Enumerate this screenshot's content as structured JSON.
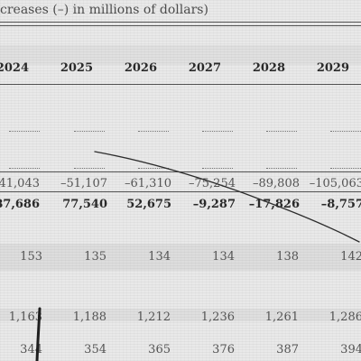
{
  "header": {
    "caption": "creases (–) in millions of dollars)"
  },
  "years": [
    "2024",
    "2025",
    "2026",
    "2027",
    "2028",
    "2029"
  ],
  "rows": {
    "row_a": [
      "–41,043",
      "–51,107",
      "–61,310",
      "–75,254",
      "–89,808",
      "–105,063"
    ],
    "row_b": [
      "87,686",
      "77,540",
      "52,675",
      "–9,287",
      "–17,826",
      "–8,757"
    ],
    "row_c": [
      "153",
      "135",
      "134",
      "134",
      "138",
      "142"
    ],
    "row_d": [
      "1,163",
      "1,188",
      "1,212",
      "1,236",
      "1,261",
      "1,286"
    ],
    "row_e": [
      "344",
      "354",
      "365",
      "376",
      "387",
      "394"
    ]
  }
}
